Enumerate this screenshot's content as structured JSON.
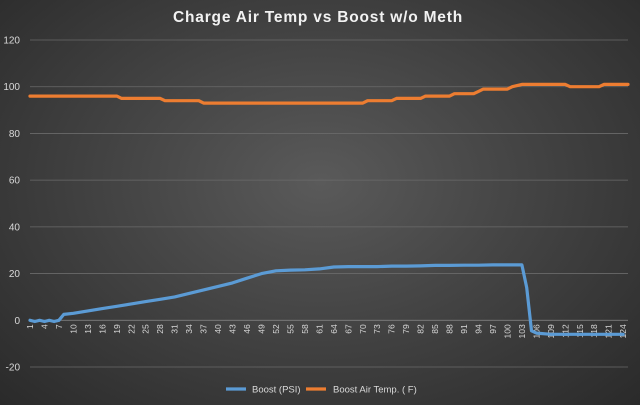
{
  "chart_data": {
    "type": "line",
    "title": "Charge Air Temp vs Boost w/o Meth",
    "xlabel": "",
    "ylabel": "",
    "ylim": [
      -20,
      120
    ],
    "yticks": [
      -20,
      0,
      20,
      40,
      60,
      80,
      100,
      120
    ],
    "x_count": 125,
    "x_tick_labels": [
      "1",
      "4",
      "7",
      "10",
      "13",
      "16",
      "19",
      "22",
      "25",
      "28",
      "31",
      "34",
      "37",
      "40",
      "43",
      "46",
      "49",
      "52",
      "55",
      "58",
      "61",
      "64",
      "67",
      "70",
      "73",
      "76",
      "79",
      "82",
      "85",
      "88",
      "91",
      "94",
      "97",
      "100",
      "103",
      "106",
      "109",
      "112",
      "115",
      "118",
      "121",
      "124"
    ],
    "grid": true,
    "legend_position": "bottom",
    "series": [
      {
        "name": "Boost (PSI)",
        "color": "#5b9bd5",
        "points": [
          [
            1,
            0
          ],
          [
            2,
            -0.5
          ],
          [
            3,
            0
          ],
          [
            4,
            -0.5
          ],
          [
            5,
            0
          ],
          [
            6,
            -0.5
          ],
          [
            7,
            0
          ],
          [
            8,
            2.5
          ],
          [
            10,
            3
          ],
          [
            13,
            4
          ],
          [
            16,
            5
          ],
          [
            19,
            6
          ],
          [
            22,
            7
          ],
          [
            25,
            8
          ],
          [
            28,
            9
          ],
          [
            31,
            10
          ],
          [
            34,
            11.5
          ],
          [
            37,
            13
          ],
          [
            40,
            14.5
          ],
          [
            43,
            16
          ],
          [
            46,
            18
          ],
          [
            49,
            20
          ],
          [
            52,
            21.2
          ],
          [
            55,
            21.5
          ],
          [
            58,
            21.6
          ],
          [
            61,
            22
          ],
          [
            64,
            22.8
          ],
          [
            67,
            23
          ],
          [
            70,
            23
          ],
          [
            73,
            23
          ],
          [
            76,
            23.2
          ],
          [
            79,
            23.2
          ],
          [
            82,
            23.3
          ],
          [
            85,
            23.5
          ],
          [
            88,
            23.5
          ],
          [
            91,
            23.6
          ],
          [
            94,
            23.6
          ],
          [
            97,
            23.7
          ],
          [
            100,
            23.7
          ],
          [
            103,
            23.7
          ],
          [
            104,
            14
          ],
          [
            105,
            -4.5
          ],
          [
            106,
            -5.5
          ],
          [
            109,
            -6
          ],
          [
            112,
            -6
          ],
          [
            115,
            -6
          ],
          [
            118,
            -6
          ],
          [
            121,
            -6
          ],
          [
            124,
            -6
          ]
        ]
      },
      {
        "name": "Boost Air Temp. ( F)",
        "color": "#ed7d31",
        "points": [
          [
            1,
            96
          ],
          [
            19,
            96
          ],
          [
            20,
            95
          ],
          [
            28,
            95
          ],
          [
            29,
            94
          ],
          [
            36,
            94
          ],
          [
            37,
            93
          ],
          [
            52,
            93
          ],
          [
            70,
            93
          ],
          [
            71,
            94
          ],
          [
            76,
            94
          ],
          [
            77,
            95
          ],
          [
            82,
            95
          ],
          [
            83,
            96
          ],
          [
            88,
            96
          ],
          [
            89,
            97
          ],
          [
            93,
            97
          ],
          [
            94,
            98
          ],
          [
            95,
            99
          ],
          [
            100,
            99
          ],
          [
            101,
            100
          ],
          [
            103,
            101
          ],
          [
            112,
            101
          ],
          [
            113,
            100
          ],
          [
            119,
            100
          ],
          [
            120,
            101
          ],
          [
            125,
            101
          ]
        ]
      }
    ]
  }
}
